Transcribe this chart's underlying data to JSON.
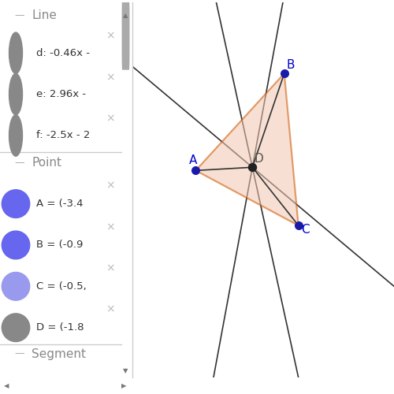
{
  "bg_color": "#ffffff",
  "sidebar_bg": "#f2f2f2",
  "sidebar_border": "#cccccc",
  "line_circle_color": "#888888",
  "point_circle_A_color": "#6666ee",
  "point_circle_B_color": "#6666ee",
  "point_circle_C_color": "#9999ee",
  "point_circle_D_color": "#888888",
  "blue_point_color": "#1a1aaa",
  "dark_point_color": "#222222",
  "triangle_fill": "#f2c8b0",
  "triangle_fill_alpha": 0.55,
  "triangle_edge_color": "#cc5500",
  "line_color": "#333333",
  "label_color": "#0000cc",
  "label_color_D": "#555555",
  "x_mark_color": "#bbbbbb",
  "A": [
    -3.4,
    0.0
  ],
  "B": [
    -0.9,
    1.5
  ],
  "C": [
    -0.5,
    -0.85
  ],
  "D": [
    -1.8,
    0.05
  ],
  "line_d_slope": -0.46,
  "line_e_slope": 2.96,
  "line_f_slope": -2.5,
  "view_xlim": [
    -5.2,
    2.2
  ],
  "view_ylim": [
    -3.2,
    2.6
  ]
}
